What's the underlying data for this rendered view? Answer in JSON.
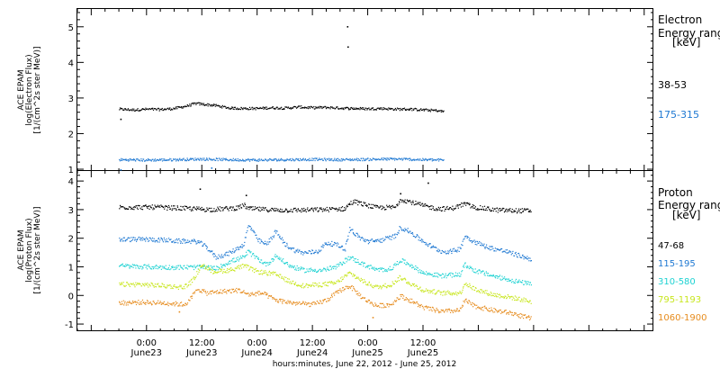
{
  "chart_data": [
    {
      "type": "scatter",
      "instrument": "ACE EPAM",
      "ylabel": "log(Electron Flux)",
      "yunits": "[1/(cm^2s ster MeV)]",
      "ylim": [
        0.95,
        5.5
      ],
      "yticks": [
        1,
        2,
        3,
        4,
        5
      ],
      "legend_title": "Electron",
      "legend_subtitle": "Energy range",
      "legend_units": "[keV]",
      "series": [
        {
          "name": "38-53",
          "color": "#000000",
          "points": [
            [
              0,
              2.7
            ],
            [
              3,
              2.68
            ],
            [
              6,
              2.7
            ],
            [
              9,
              2.69
            ],
            [
              12,
              2.72
            ],
            [
              15,
              2.8
            ],
            [
              16.5,
              2.86
            ],
            [
              18,
              2.84
            ],
            [
              21,
              2.8
            ],
            [
              24,
              2.73
            ],
            [
              27,
              2.72
            ],
            [
              30,
              2.72
            ],
            [
              33,
              2.74
            ],
            [
              36,
              2.73
            ],
            [
              39,
              2.76
            ],
            [
              42,
              2.74
            ],
            [
              45,
              2.75
            ],
            [
              48,
              2.73
            ],
            [
              51,
              2.72
            ],
            [
              54,
              2.71
            ],
            [
              57,
              2.72
            ],
            [
              60,
              2.7
            ],
            [
              63,
              2.7
            ],
            [
              66,
              2.68
            ],
            [
              69,
              2.66
            ],
            [
              70,
              2.64
            ],
            [
              70.5,
              2.63
            ]
          ],
          "outliers": [
            [
              0.3,
              2.42
            ],
            [
              49.5,
              5.02
            ],
            [
              49.6,
              4.45
            ]
          ]
        },
        {
          "name": "175-315",
          "color": "#1e78d2",
          "points": [
            [
              0,
              1.28
            ],
            [
              6,
              1.27
            ],
            [
              12,
              1.28
            ],
            [
              18,
              1.3
            ],
            [
              24,
              1.28
            ],
            [
              30,
              1.27
            ],
            [
              36,
              1.28
            ],
            [
              42,
              1.29
            ],
            [
              48,
              1.28
            ],
            [
              54,
              1.29
            ],
            [
              60,
              1.3
            ],
            [
              66,
              1.28
            ],
            [
              70.5,
              1.27
            ]
          ],
          "outliers": [
            [
              0.3,
              1.0
            ],
            [
              20,
              1.05
            ]
          ]
        }
      ]
    },
    {
      "type": "scatter",
      "instrument": "ACE EPAM",
      "ylabel": "log(Proton Flux)",
      "yunits": "[1/(cm^2s ster MeV)]",
      "ylim": [
        -1.25,
        4.35
      ],
      "yticks": [
        -1,
        0,
        1,
        2,
        3,
        4
      ],
      "legend_title": "Proton",
      "legend_subtitle": "Energy range",
      "legend_units": "[keV]",
      "series": [
        {
          "name": "47-68",
          "color": "#000000",
          "points": [
            [
              0,
              3.1
            ],
            [
              8,
              3.1
            ],
            [
              14,
              3.06
            ],
            [
              20,
              3.02
            ],
            [
              26,
              3.08
            ],
            [
              27,
              3.18
            ],
            [
              28,
              3.05
            ],
            [
              34,
              3.0
            ],
            [
              40,
              3.0
            ],
            [
              45,
              3.02
            ],
            [
              49,
              3.05
            ],
            [
              50,
              3.22
            ],
            [
              51,
              3.3
            ],
            [
              53,
              3.2
            ],
            [
              56,
              3.08
            ],
            [
              60,
              3.1
            ],
            [
              61,
              3.38
            ],
            [
              63,
              3.3
            ],
            [
              66,
              3.15
            ],
            [
              69,
              3.05
            ],
            [
              72,
              3.05
            ],
            [
              75,
              3.22
            ],
            [
              77,
              3.1
            ],
            [
              82,
              3.0
            ],
            [
              86,
              2.98
            ],
            [
              89.5,
              2.98
            ]
          ],
          "outliers": [
            [
              17.5,
              3.74
            ],
            [
              27.5,
              3.52
            ],
            [
              61,
              3.58
            ],
            [
              67,
              3.95
            ]
          ]
        },
        {
          "name": "115-195",
          "color": "#1e78d2",
          "points": [
            [
              0,
              1.97
            ],
            [
              5,
              1.98
            ],
            [
              10,
              1.95
            ],
            [
              12,
              1.92
            ],
            [
              17,
              1.9
            ],
            [
              19,
              1.7
            ],
            [
              21,
              1.35
            ],
            [
              24,
              1.5
            ],
            [
              27,
              1.8
            ],
            [
              28,
              2.45
            ],
            [
              29,
              2.3
            ],
            [
              30,
              1.95
            ],
            [
              32,
              1.8
            ],
            [
              34,
              2.25
            ],
            [
              36,
              1.8
            ],
            [
              38,
              1.6
            ],
            [
              40,
              1.5
            ],
            [
              43,
              1.55
            ],
            [
              45,
              1.85
            ],
            [
              47,
              1.8
            ],
            [
              49,
              1.65
            ],
            [
              50,
              2.35
            ],
            [
              52,
              2.05
            ],
            [
              54,
              1.9
            ],
            [
              57,
              1.95
            ],
            [
              60,
              2.1
            ],
            [
              61,
              2.4
            ],
            [
              63,
              2.25
            ],
            [
              66,
              1.9
            ],
            [
              68,
              1.7
            ],
            [
              70,
              1.55
            ],
            [
              72,
              1.55
            ],
            [
              74,
              1.65
            ],
            [
              75,
              2.1
            ],
            [
              77,
              1.9
            ],
            [
              80,
              1.7
            ],
            [
              84,
              1.55
            ],
            [
              87,
              1.4
            ],
            [
              89.5,
              1.28
            ]
          ]
        },
        {
          "name": "310-580",
          "color": "#1ed2d2",
          "points": [
            [
              0,
              1.05
            ],
            [
              5,
              1.02
            ],
            [
              10,
              1.0
            ],
            [
              14,
              1.0
            ],
            [
              19,
              1.0
            ],
            [
              21,
              0.95
            ],
            [
              24,
              1.2
            ],
            [
              27,
              1.35
            ],
            [
              28,
              1.55
            ],
            [
              30,
              1.3
            ],
            [
              32,
              1.1
            ],
            [
              34,
              1.4
            ],
            [
              37,
              1.05
            ],
            [
              40,
              0.9
            ],
            [
              44,
              0.9
            ],
            [
              47,
              1.0
            ],
            [
              50,
              1.35
            ],
            [
              53,
              1.1
            ],
            [
              56,
              0.9
            ],
            [
              59,
              0.95
            ],
            [
              61,
              1.25
            ],
            [
              63,
              1.1
            ],
            [
              66,
              0.8
            ],
            [
              70,
              0.7
            ],
            [
              74,
              0.75
            ],
            [
              75,
              1.1
            ],
            [
              77,
              0.9
            ],
            [
              81,
              0.7
            ],
            [
              85,
              0.55
            ],
            [
              89.5,
              0.4
            ]
          ]
        },
        {
          "name": "795-1193",
          "color": "#c8e61e",
          "points": [
            [
              0,
              0.4
            ],
            [
              5,
              0.4
            ],
            [
              10,
              0.35
            ],
            [
              14,
              0.3
            ],
            [
              16,
              0.55
            ],
            [
              18,
              1.1
            ],
            [
              20,
              0.85
            ],
            [
              24,
              0.9
            ],
            [
              27,
              1.05
            ],
            [
              30,
              0.85
            ],
            [
              34,
              0.75
            ],
            [
              37,
              0.5
            ],
            [
              40,
              0.35
            ],
            [
              44,
              0.4
            ],
            [
              47,
              0.45
            ],
            [
              50,
              0.8
            ],
            [
              53,
              0.5
            ],
            [
              56,
              0.3
            ],
            [
              59,
              0.4
            ],
            [
              61,
              0.65
            ],
            [
              63,
              0.45
            ],
            [
              66,
              0.2
            ],
            [
              70,
              0.1
            ],
            [
              74,
              0.1
            ],
            [
              75,
              0.45
            ],
            [
              77,
              0.25
            ],
            [
              81,
              0.05
            ],
            [
              85,
              -0.05
            ],
            [
              89.5,
              -0.2
            ]
          ]
        },
        {
          "name": "1060-1900",
          "color": "#e68c1e",
          "points": [
            [
              0,
              -0.25
            ],
            [
              5,
              -0.22
            ],
            [
              10,
              -0.25
            ],
            [
              14,
              -0.3
            ],
            [
              15,
              -0.2
            ],
            [
              17,
              0.25
            ],
            [
              19,
              0.1
            ],
            [
              22,
              0.15
            ],
            [
              26,
              0.2
            ],
            [
              28,
              0.05
            ],
            [
              31,
              0.1
            ],
            [
              34,
              -0.15
            ],
            [
              38,
              -0.25
            ],
            [
              42,
              -0.3
            ],
            [
              45,
              -0.15
            ],
            [
              48,
              0.2
            ],
            [
              50,
              0.35
            ],
            [
              53,
              -0.1
            ],
            [
              56,
              -0.35
            ],
            [
              59,
              -0.3
            ],
            [
              61,
              0.0
            ],
            [
              63,
              -0.15
            ],
            [
              66,
              -0.4
            ],
            [
              70,
              -0.55
            ],
            [
              74,
              -0.5
            ],
            [
              75,
              -0.15
            ],
            [
              77,
              -0.35
            ],
            [
              81,
              -0.5
            ],
            [
              85,
              -0.6
            ],
            [
              89.5,
              -0.8
            ]
          ],
          "outliers": [
            [
              13,
              -0.55
            ],
            [
              55,
              -0.75
            ]
          ]
        }
      ]
    }
  ],
  "xaxis": {
    "xlim": [
      -9,
      116
    ],
    "ticks": [
      {
        "hour": 6,
        "time": "0:00",
        "day": "June23"
      },
      {
        "hour": 18,
        "time": "12:00",
        "day": "June23"
      },
      {
        "hour": 30,
        "time": "0:00",
        "day": "June24"
      },
      {
        "hour": 42,
        "time": "12:00",
        "day": "June24"
      },
      {
        "hour": 54,
        "time": "0:00",
        "day": "June25"
      },
      {
        "hour": 66,
        "time": "12:00",
        "day": "June25"
      }
    ],
    "minor_step": 3,
    "label": "hours:minutes, June 22, 2012 - June 25, 2012"
  }
}
